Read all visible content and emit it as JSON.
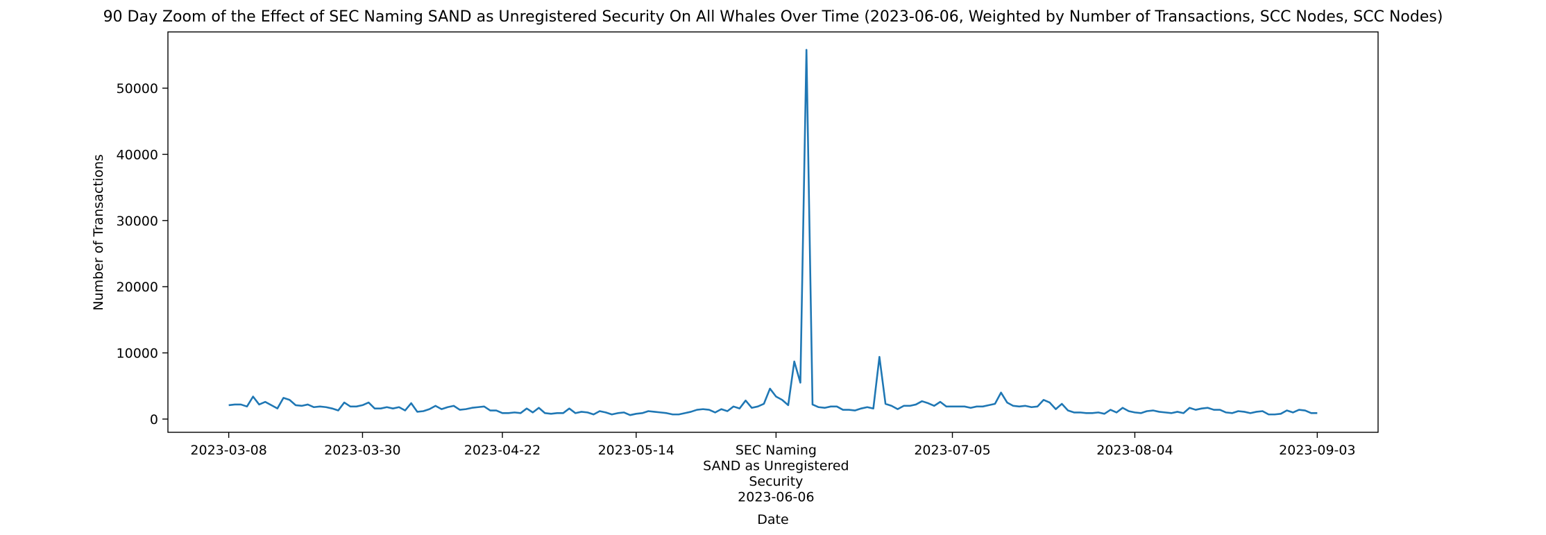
{
  "chart_data": {
    "type": "line",
    "title": "90 Day Zoom of the Effect of SEC Naming SAND as Unregistered Security On All Whales Over Time (2023-06-06, Weighted by Number of Transactions, SCC Nodes, SCC Nodes)",
    "xlabel": "Date",
    "ylabel": "Number of Transactions",
    "xlim": [
      "2023-02-26",
      "2023-09-13"
    ],
    "ylim": [
      -2000,
      58500
    ],
    "grid": false,
    "color": "#1f77b4",
    "x_ticks": [
      {
        "date": "2023-03-08",
        "lines": [
          "2023-03-08"
        ]
      },
      {
        "date": "2023-03-30",
        "lines": [
          "2023-03-30"
        ]
      },
      {
        "date": "2023-04-22",
        "lines": [
          "2023-04-22"
        ]
      },
      {
        "date": "2023-05-14",
        "lines": [
          "2023-05-14"
        ]
      },
      {
        "date": "2023-06-06",
        "lines": [
          "SEC Naming",
          "SAND as Unregistered",
          "Security",
          "2023-06-06"
        ]
      },
      {
        "date": "2023-07-05",
        "lines": [
          "2023-07-05"
        ]
      },
      {
        "date": "2023-08-04",
        "lines": [
          "2023-08-04"
        ]
      },
      {
        "date": "2023-09-03",
        "lines": [
          "2023-09-03"
        ]
      }
    ],
    "y_ticks": [
      0,
      10000,
      20000,
      30000,
      40000,
      50000
    ],
    "series": [
      {
        "x": [
          "2023-03-08",
          "2023-03-09",
          "2023-03-10",
          "2023-03-11",
          "2023-03-12",
          "2023-03-13",
          "2023-03-14",
          "2023-03-15",
          "2023-03-16",
          "2023-03-17",
          "2023-03-18",
          "2023-03-19",
          "2023-03-20",
          "2023-03-21",
          "2023-03-22",
          "2023-03-23",
          "2023-03-24",
          "2023-03-25",
          "2023-03-26",
          "2023-03-27",
          "2023-03-28",
          "2023-03-29",
          "2023-03-30",
          "2023-03-31",
          "2023-04-01",
          "2023-04-02",
          "2023-04-03",
          "2023-04-04",
          "2023-04-05",
          "2023-04-06",
          "2023-04-07",
          "2023-04-08",
          "2023-04-09",
          "2023-04-10",
          "2023-04-11",
          "2023-04-12",
          "2023-04-13",
          "2023-04-14",
          "2023-04-15",
          "2023-04-16",
          "2023-04-17",
          "2023-04-18",
          "2023-04-19",
          "2023-04-20",
          "2023-04-21",
          "2023-04-22",
          "2023-04-23",
          "2023-04-24",
          "2023-04-25",
          "2023-04-26",
          "2023-04-27",
          "2023-04-28",
          "2023-04-29",
          "2023-04-30",
          "2023-05-01",
          "2023-05-02",
          "2023-05-03",
          "2023-05-04",
          "2023-05-05",
          "2023-05-06",
          "2023-05-07",
          "2023-05-08",
          "2023-05-09",
          "2023-05-10",
          "2023-05-11",
          "2023-05-12",
          "2023-05-13",
          "2023-05-14",
          "2023-05-15",
          "2023-05-16",
          "2023-05-17",
          "2023-05-18",
          "2023-05-19",
          "2023-05-20",
          "2023-05-21",
          "2023-05-22",
          "2023-05-23",
          "2023-05-24",
          "2023-05-25",
          "2023-05-26",
          "2023-05-27",
          "2023-05-28",
          "2023-05-29",
          "2023-05-30",
          "2023-05-31",
          "2023-06-01",
          "2023-06-02",
          "2023-06-03",
          "2023-06-04",
          "2023-06-05",
          "2023-06-06",
          "2023-06-07",
          "2023-06-08",
          "2023-06-09",
          "2023-06-10",
          "2023-06-11",
          "2023-06-12",
          "2023-06-13",
          "2023-06-14",
          "2023-06-15",
          "2023-06-16",
          "2023-06-17",
          "2023-06-18",
          "2023-06-19",
          "2023-06-20",
          "2023-06-21",
          "2023-06-22",
          "2023-06-23",
          "2023-06-24",
          "2023-06-25",
          "2023-06-26",
          "2023-06-27",
          "2023-06-28",
          "2023-06-29",
          "2023-06-30",
          "2023-07-01",
          "2023-07-02",
          "2023-07-03",
          "2023-07-04",
          "2023-07-05",
          "2023-07-06",
          "2023-07-07",
          "2023-07-08",
          "2023-07-09",
          "2023-07-10",
          "2023-07-11",
          "2023-07-12",
          "2023-07-13",
          "2023-07-14",
          "2023-07-15",
          "2023-07-16",
          "2023-07-17",
          "2023-07-18",
          "2023-07-19",
          "2023-07-20",
          "2023-07-21",
          "2023-07-22",
          "2023-07-23",
          "2023-07-24",
          "2023-07-25",
          "2023-07-26",
          "2023-07-27",
          "2023-07-28",
          "2023-07-29",
          "2023-07-30",
          "2023-07-31",
          "2023-08-01",
          "2023-08-02",
          "2023-08-03",
          "2023-08-04",
          "2023-08-05",
          "2023-08-06",
          "2023-08-07",
          "2023-08-08",
          "2023-08-09",
          "2023-08-10",
          "2023-08-11",
          "2023-08-12",
          "2023-08-13",
          "2023-08-14",
          "2023-08-15",
          "2023-08-16",
          "2023-08-17",
          "2023-08-18",
          "2023-08-19",
          "2023-08-20",
          "2023-08-21",
          "2023-08-22",
          "2023-08-23",
          "2023-08-24",
          "2023-08-25",
          "2023-08-26",
          "2023-08-27",
          "2023-08-28",
          "2023-08-29",
          "2023-08-30",
          "2023-08-31",
          "2023-09-01",
          "2023-09-02",
          "2023-09-03"
        ],
        "y": [
          2100,
          2200,
          2200,
          1900,
          3400,
          2200,
          2600,
          2100,
          1600,
          3200,
          2900,
          2100,
          2000,
          2200,
          1800,
          1900,
          1800,
          1600,
          1300,
          2500,
          1900,
          1900,
          2100,
          2500,
          1600,
          1600,
          1800,
          1600,
          1800,
          1300,
          2400,
          1100,
          1200,
          1500,
          2000,
          1500,
          1800,
          2000,
          1400,
          1500,
          1700,
          1800,
          1900,
          1300,
          1300,
          900,
          900,
          1000,
          900,
          1600,
          1000,
          1700,
          900,
          800,
          900,
          900,
          1600,
          900,
          1100,
          1000,
          700,
          1200,
          1000,
          700,
          900,
          1000,
          600,
          800,
          900,
          1200,
          1100,
          1000,
          900,
          700,
          700,
          900,
          1100,
          1400,
          1500,
          1400,
          1000,
          1500,
          1200,
          1900,
          1600,
          2800,
          1700,
          1900,
          2300,
          4600,
          3400,
          2900,
          2100,
          8700,
          5500,
          55800,
          2200,
          1800,
          1700,
          1900,
          1900,
          1400,
          1400,
          1300,
          1600,
          1800,
          1600,
          9400,
          2300,
          2000,
          1500,
          2000,
          2000,
          2200,
          2700,
          2400,
          2000,
          2600,
          1900,
          1900,
          1900,
          1900,
          1700,
          1900,
          1900,
          2100,
          2300,
          4000,
          2500,
          2000,
          1900,
          2000,
          1800,
          1900,
          2900,
          2500,
          1500,
          2300,
          1300,
          1000,
          1000,
          900,
          900,
          1000,
          800,
          1400,
          1000,
          1700,
          1200,
          1000,
          900,
          1200,
          1300,
          1100,
          1000,
          900,
          1100,
          900,
          1700,
          1400,
          1600,
          1700,
          1400,
          1400,
          1000,
          900,
          1200,
          1100,
          900,
          1100,
          1200,
          700,
          700,
          800,
          1300,
          1000,
          1400,
          1300,
          900,
          900
        ]
      }
    ]
  }
}
